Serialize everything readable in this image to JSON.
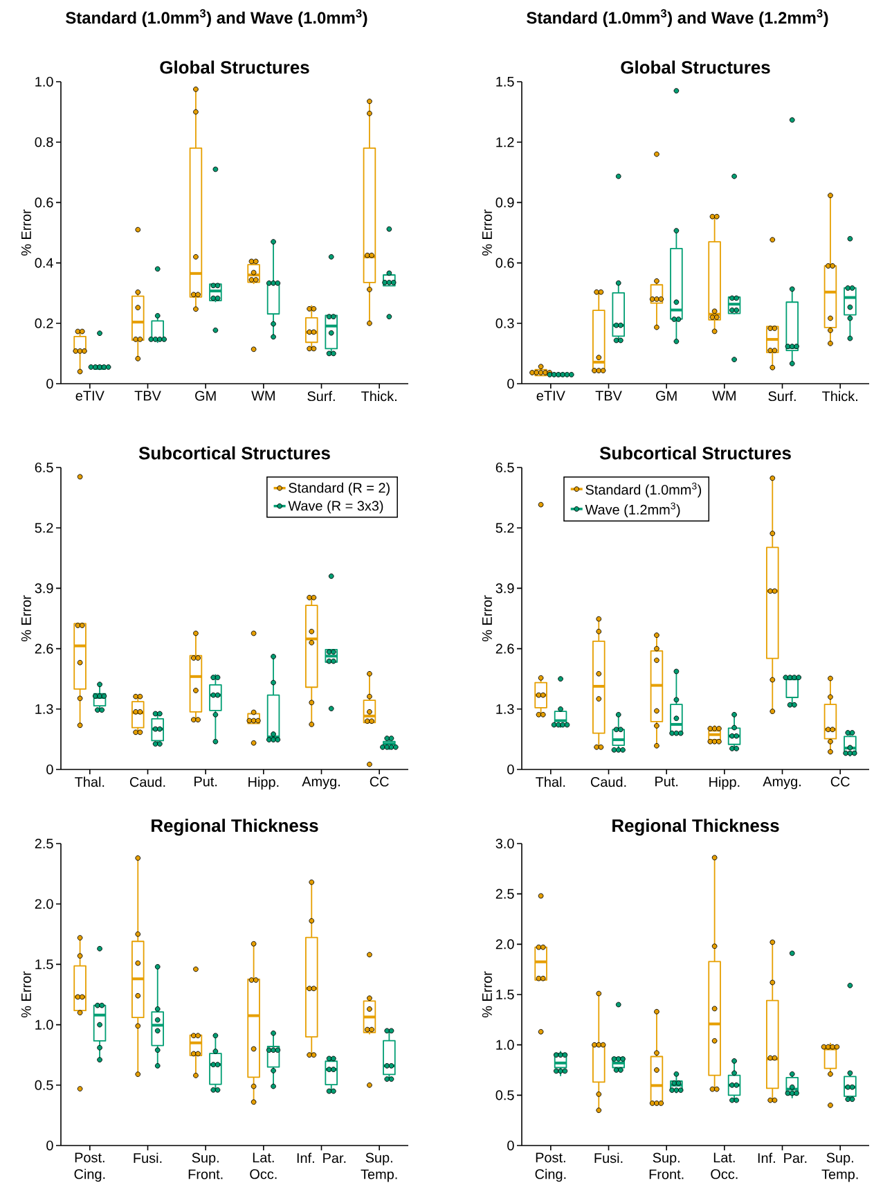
{
  "chart_data": [
    {
      "type": "box",
      "title": "Standard (1.0mm$^{3}$) and Wave (1.0mm$^{3}$)",
      "subtitle": "Global Structures",
      "ylabel": "% Error",
      "categories": [
        "eTIV",
        "TBV",
        "GM",
        "WM",
        "Surf.",
        "Thick."
      ],
      "ylim": [
        0,
        1
      ],
      "yticks": [
        0,
        0.2,
        0.4,
        0.6,
        0.8,
        {
          "value": 1,
          "label": "1.0"
        }
      ],
      "series": [
        {
          "color": "#e69f00",
          "boxes": [
            {
              "low": 0.04,
              "q1": 0.108,
              "median": 0.108,
              "q3": 0.156,
              "high": 0.173
            },
            {
              "low": 0.083,
              "q1": 0.144,
              "median": 0.204,
              "q3": 0.29,
              "high": 0.303
            },
            {
              "low": 0.247,
              "q1": 0.287,
              "median": 0.365,
              "q3": 0.78,
              "high": 0.975
            },
            {
              "low": 0.33,
              "q1": 0.336,
              "median": 0.36,
              "q3": 0.394,
              "high": 0.405
            },
            {
              "low": 0.116,
              "q1": 0.137,
              "median": 0.17,
              "q3": 0.218,
              "high": 0.26
            },
            {
              "low": 0.2,
              "q1": 0.335,
              "median": 0.42,
              "q3": 0.78,
              "high": 0.935
            }
          ]
        },
        {
          "color": "#009e73",
          "boxes": [
            {
              "low": 0.045,
              "q1": 0.048,
              "median": 0.055,
              "q3": 0.06,
              "high": 0.062
            },
            {
              "low": 0.135,
              "q1": 0.144,
              "median": 0.147,
              "q3": 0.208,
              "high": 0.225
            },
            {
              "low": 0.27,
              "q1": 0.275,
              "median": 0.307,
              "q3": 0.33,
              "high": 0.33
            },
            {
              "low": 0.155,
              "q1": 0.231,
              "median": 0.333,
              "q3": 0.333,
              "high": 0.47
            },
            {
              "low": 0.1,
              "q1": 0.116,
              "median": 0.191,
              "q3": 0.226,
              "high": 0.226
            },
            {
              "low": 0.324,
              "q1": 0.324,
              "median": 0.335,
              "q3": 0.36,
              "high": 0.366
            }
          ]
        },
        {
          "type": "scatter",
          "color": "#e69f00",
          "marker": "circle",
          "x": [
            "eTIV",
            "eTIV",
            "eTIV",
            "eTIV",
            "eTIV",
            "eTIV",
            "TBV",
            "TBV",
            "TBV",
            "TBV",
            "TBV",
            "TBV",
            "GM",
            "GM",
            "GM",
            "GM",
            "GM",
            "GM",
            "WM",
            "WM",
            "WM",
            "WM",
            "WM",
            "WM",
            "Surf.",
            "Surf.",
            "Surf.",
            "Surf.",
            "Surf.",
            "Surf.",
            "Thick.",
            "Thick.",
            "Thick.",
            "Thick.",
            "Thick.",
            "Thick."
          ],
          "values": [
            0.173,
            0.173,
            0.108,
            0.108,
            0.108,
            0.04,
            0.51,
            0.303,
            0.252,
            0.147,
            0.147,
            0.083,
            0.975,
            0.9,
            0.42,
            0.295,
            0.295,
            0.247,
            0.405,
            0.405,
            0.368,
            0.344,
            0.344,
            0.114,
            0.248,
            0.248,
            0.171,
            0.171,
            0.116,
            0.116,
            0.935,
            0.895,
            0.425,
            0.425,
            0.312,
            0.2
          ]
        },
        {
          "type": "scatter",
          "color": "#009e73",
          "marker": "circle",
          "x": [
            "eTIV",
            "eTIV",
            "eTIV",
            "eTIV",
            "eTIV",
            "eTIV",
            "TBV",
            "TBV",
            "TBV",
            "TBV",
            "TBV",
            "TBV",
            "GM",
            "GM",
            "GM",
            "GM",
            "GM",
            "GM",
            "WM",
            "WM",
            "WM",
            "WM",
            "WM",
            "WM",
            "Surf.",
            "Surf.",
            "Surf.",
            "Surf.",
            "Surf.",
            "Surf.",
            "Thick.",
            "Thick.",
            "Thick.",
            "Thick.",
            "Thick.",
            "Thick."
          ],
          "values": [
            0.167,
            0.055,
            0.055,
            0.055,
            0.055,
            0.055,
            0.38,
            0.225,
            0.147,
            0.147,
            0.147,
            0.147,
            0.71,
            0.325,
            0.325,
            0.283,
            0.283,
            0.177,
            0.47,
            0.333,
            0.333,
            0.333,
            0.198,
            0.155,
            0.42,
            0.222,
            0.222,
            0.168,
            0.1,
            0.1,
            0.512,
            0.366,
            0.335,
            0.335,
            0.335,
            0.222
          ]
        }
      ]
    },
    {
      "type": "box",
      "title": "Standard (1.0mm$^{3}$) and Wave (1.2mm$^{3}$)",
      "subtitle": "Global Structures",
      "ylabel": "% Error",
      "categories": [
        "eTIV",
        "TBV",
        "GM",
        "WM",
        "Surf.",
        "Thick."
      ],
      "ylim": [
        0,
        1.5
      ],
      "yticks": [
        0,
        0.3,
        0.6,
        0.9,
        1.2,
        1.5
      ],
      "series": [
        {
          "color": "#e69f00",
          "boxes": [
            {
              "low": 0.04,
              "q1": 0.04,
              "median": 0.055,
              "q3": 0.07,
              "high": 0.085
            },
            {
              "low": 0.055,
              "q1": 0.066,
              "median": 0.107,
              "q3": 0.364,
              "high": 0.455
            },
            {
              "low": 0.28,
              "q1": 0.4,
              "median": 0.42,
              "q3": 0.491,
              "high": 0.51
            },
            {
              "low": 0.26,
              "q1": 0.317,
              "median": 0.345,
              "q3": 0.705,
              "high": 0.83
            },
            {
              "low": 0.08,
              "q1": 0.155,
              "median": 0.22,
              "q3": 0.284,
              "high": 0.284
            },
            {
              "low": 0.2,
              "q1": 0.279,
              "median": 0.455,
              "q3": 0.585,
              "high": 0.935
            }
          ]
        },
        {
          "color": "#009e73",
          "boxes": [
            {
              "low": 0.035,
              "q1": 0.04,
              "median": 0.045,
              "q3": 0.05,
              "high": 0.05
            },
            {
              "low": 0.215,
              "q1": 0.236,
              "median": 0.29,
              "q3": 0.451,
              "high": 0.5
            },
            {
              "low": 0.21,
              "q1": 0.321,
              "median": 0.366,
              "q3": 0.671,
              "high": 0.76
            },
            {
              "low": 0.345,
              "q1": 0.349,
              "median": 0.395,
              "q3": 0.43,
              "high": 0.43
            },
            {
              "low": 0.1,
              "q1": 0.165,
              "median": 0.18,
              "q3": 0.405,
              "high": 0.47
            },
            {
              "low": 0.225,
              "q1": 0.342,
              "median": 0.428,
              "q3": 0.476,
              "high": 0.476
            }
          ]
        },
        {
          "type": "scatter",
          "color": "#e69f00",
          "marker": "circle",
          "x": [
            "eTIV",
            "eTIV",
            "eTIV",
            "eTIV",
            "eTIV",
            "eTIV",
            "TBV",
            "TBV",
            "TBV",
            "TBV",
            "TBV",
            "TBV",
            "GM",
            "GM",
            "GM",
            "GM",
            "GM",
            "GM",
            "WM",
            "WM",
            "WM",
            "WM",
            "WM",
            "WM",
            "Surf.",
            "Surf.",
            "Surf.",
            "Surf.",
            "Surf.",
            "Surf.",
            "Thick.",
            "Thick.",
            "Thick.",
            "Thick.",
            "Thick.",
            "Thick."
          ],
          "values": [
            0.085,
            0.055,
            0.055,
            0.055,
            0.055,
            0.055,
            0.455,
            0.455,
            0.13,
            0.065,
            0.065,
            0.065,
            1.14,
            0.51,
            0.42,
            0.42,
            0.42,
            0.28,
            0.83,
            0.83,
            0.36,
            0.33,
            0.33,
            0.26,
            0.715,
            0.275,
            0.275,
            0.165,
            0.165,
            0.08,
            0.935,
            0.585,
            0.585,
            0.325,
            0.265,
            0.2
          ]
        },
        {
          "type": "scatter",
          "color": "#009e73",
          "marker": "circle",
          "x": [
            "eTIV",
            "eTIV",
            "eTIV",
            "eTIV",
            "eTIV",
            "eTIV",
            "TBV",
            "TBV",
            "TBV",
            "TBV",
            "TBV",
            "TBV",
            "GM",
            "GM",
            "GM",
            "GM",
            "GM",
            "GM",
            "WM",
            "WM",
            "WM",
            "WM",
            "WM",
            "WM",
            "Surf.",
            "Surf.",
            "Surf.",
            "Surf.",
            "Surf.",
            "Surf.",
            "Thick.",
            "Thick.",
            "Thick.",
            "Thick.",
            "Thick.",
            "Thick."
          ],
          "values": [
            0.045,
            0.045,
            0.045,
            0.045,
            0.045,
            0.045,
            1.03,
            0.5,
            0.29,
            0.29,
            0.215,
            0.215,
            1.455,
            0.76,
            0.405,
            0.32,
            0.32,
            0.21,
            1.03,
            0.425,
            0.425,
            0.365,
            0.365,
            0.12,
            1.31,
            0.47,
            0.185,
            0.185,
            0.185,
            0.1,
            0.72,
            0.475,
            0.475,
            0.38,
            0.325,
            0.225
          ]
        }
      ]
    },
    {
      "type": "box",
      "title": "Subcortical Structures",
      "ylabel": "% Error",
      "categories": [
        "Thal.",
        "Caud.",
        "Put.",
        "Hipp.",
        "Amyg.",
        "CC"
      ],
      "ylim": [
        0,
        6.5
      ],
      "yticks": [
        0,
        1.3,
        2.6,
        3.9,
        5.2,
        6.5
      ],
      "legend": "top right",
      "series": [
        {
          "name": "Standard (R = 2)",
          "color": "#e69f00",
          "boxes": [
            {
              "low": 0.95,
              "q1": 1.73,
              "median": 2.66,
              "q3": 3.14,
              "high": 3.14
            },
            {
              "low": 0.8,
              "q1": 0.9,
              "median": 1.22,
              "q3": 1.46,
              "high": 1.57
            },
            {
              "low": 1.07,
              "q1": 1.24,
              "median": 2.0,
              "q3": 2.45,
              "high": 2.93
            },
            {
              "low": 0.99,
              "q1": 0.99,
              "median": 1.05,
              "q3": 1.2,
              "high": 1.23
            },
            {
              "low": 0.97,
              "q1": 1.77,
              "median": 2.81,
              "q3": 3.53,
              "high": 3.7
            },
            {
              "low": 1.0,
              "q1": 1.01,
              "median": 1.15,
              "q3": 1.49,
              "high": 2.06
            }
          ]
        },
        {
          "name": "Wave (R = 3x3)",
          "color": "#009e73",
          "boxes": [
            {
              "low": 1.28,
              "q1": 1.37,
              "median": 1.55,
              "q3": 1.63,
              "high": 1.83
            },
            {
              "low": 0.55,
              "q1": 0.62,
              "median": 0.87,
              "q3": 1.09,
              "high": 1.2
            },
            {
              "low": 0.6,
              "q1": 1.27,
              "median": 1.6,
              "q3": 1.82,
              "high": 2.05
            },
            {
              "low": 0.62,
              "q1": 0.66,
              "median": 0.7,
              "q3": 1.6,
              "high": 2.43
            },
            {
              "low": 2.31,
              "q1": 2.31,
              "median": 2.44,
              "q3": 2.58,
              "high": 2.58
            },
            {
              "low": 0.42,
              "q1": 0.48,
              "median": 0.55,
              "q3": 0.6,
              "high": 0.67
            }
          ]
        },
        {
          "type": "scatter",
          "color": "#e69f00",
          "marker": "circle",
          "x": [
            "Thal.",
            "Thal.",
            "Thal.",
            "Thal.",
            "Thal.",
            "Thal.",
            "Caud.",
            "Caud.",
            "Caud.",
            "Caud.",
            "Caud.",
            "Caud.",
            "Put.",
            "Put.",
            "Put.",
            "Put.",
            "Put.",
            "Put.",
            "Hipp.",
            "Hipp.",
            "Hipp.",
            "Hipp.",
            "Hipp.",
            "Hipp.",
            "Amyg.",
            "Amyg.",
            "Amyg.",
            "Amyg.",
            "Amyg.",
            "Amyg.",
            "CC",
            "CC",
            "CC",
            "CC",
            "CC",
            "CC"
          ],
          "values": [
            6.3,
            3.1,
            3.1,
            2.3,
            1.53,
            0.95,
            1.57,
            1.57,
            1.24,
            1.24,
            0.8,
            0.8,
            2.93,
            2.4,
            2.4,
            1.7,
            1.07,
            1.07,
            2.93,
            1.23,
            1.05,
            1.05,
            1.05,
            0.57,
            3.7,
            3.7,
            2.97,
            2.73,
            1.44,
            0.97,
            2.06,
            1.57,
            1.24,
            1.04,
            1.04,
            0.11
          ]
        },
        {
          "type": "scatter",
          "color": "#009e73",
          "marker": "circle",
          "x": [
            "Thal.",
            "Thal.",
            "Thal.",
            "Thal.",
            "Thal.",
            "Thal.",
            "Caud.",
            "Caud.",
            "Caud.",
            "Caud.",
            "Caud.",
            "Caud.",
            "Put.",
            "Put.",
            "Put.",
            "Put.",
            "Put.",
            "Put.",
            "Hipp.",
            "Hipp.",
            "Hipp.",
            "Hipp.",
            "Hipp.",
            "Hipp.",
            "Amyg.",
            "Amyg.",
            "Amyg.",
            "Amyg.",
            "Amyg.",
            "Amyg.",
            "CC",
            "CC",
            "CC",
            "CC",
            "CC",
            "CC"
          ],
          "values": [
            1.83,
            1.58,
            1.58,
            1.58,
            1.28,
            1.28,
            1.2,
            1.2,
            0.87,
            0.87,
            0.55,
            0.55,
            1.98,
            1.98,
            1.6,
            1.6,
            1.18,
            0.6,
            2.43,
            1.87,
            0.76,
            0.64,
            0.64,
            0.64,
            4.16,
            2.53,
            2.53,
            2.33,
            2.33,
            1.31,
            0.67,
            0.67,
            0.48,
            0.48,
            0.48,
            0.48
          ]
        }
      ]
    },
    {
      "type": "box",
      "title": "Subcortical Structures",
      "ylabel": "% Error",
      "categories": [
        "Thal.",
        "Caud.",
        "Put.",
        "Hipp.",
        "Amyg.",
        "CC"
      ],
      "ylim": [
        0,
        6.5
      ],
      "yticks": [
        0,
        1.3,
        2.6,
        3.9,
        5.2,
        6.5
      ],
      "legend": "top left",
      "series": [
        {
          "name": "Standard (1.0mm$^{3}$)",
          "color": "#e69f00",
          "boxes": [
            {
              "low": 1.18,
              "q1": 1.33,
              "median": 1.6,
              "q3": 1.87,
              "high": 1.97
            },
            {
              "low": 0.48,
              "q1": 0.78,
              "median": 1.79,
              "q3": 2.76,
              "high": 3.24
            },
            {
              "low": 0.51,
              "q1": 1.03,
              "median": 1.81,
              "q3": 2.55,
              "high": 2.89
            },
            {
              "low": 0.58,
              "q1": 0.64,
              "median": 0.75,
              "q3": 0.83,
              "high": 0.95
            },
            {
              "low": 1.25,
              "q1": 2.39,
              "median": 3.84,
              "q3": 4.78,
              "high": 6.27
            },
            {
              "low": 0.38,
              "q1": 0.66,
              "median": 0.86,
              "q3": 1.4,
              "high": 1.96
            }
          ]
        },
        {
          "name": "Wave (1.2mm$^{3}$)",
          "color": "#009e73",
          "boxes": [
            {
              "low": 0.9,
              "q1": 0.96,
              "median": 1.05,
              "q3": 1.25,
              "high": 1.3
            },
            {
              "low": 0.42,
              "q1": 0.52,
              "median": 0.64,
              "q3": 0.86,
              "high": 1.18
            },
            {
              "low": 0.78,
              "q1": 0.78,
              "median": 0.97,
              "q3": 1.4,
              "high": 2.11
            },
            {
              "low": 0.45,
              "q1": 0.54,
              "median": 0.72,
              "q3": 0.89,
              "high": 1.18
            },
            {
              "low": 1.39,
              "q1": 1.55,
              "median": 1.95,
              "q3": 1.98,
              "high": 2.02
            },
            {
              "low": 0.28,
              "q1": 0.33,
              "median": 0.46,
              "q3": 0.71,
              "high": 0.79
            }
          ]
        },
        {
          "type": "scatter",
          "color": "#e69f00",
          "marker": "circle",
          "x": [
            "Thal.",
            "Thal.",
            "Thal.",
            "Thal.",
            "Thal.",
            "Thal.",
            "Caud.",
            "Caud.",
            "Caud.",
            "Caud.",
            "Caud.",
            "Caud.",
            "Put.",
            "Put.",
            "Put.",
            "Put.",
            "Put.",
            "Put.",
            "Hipp.",
            "Hipp.",
            "Hipp.",
            "Hipp.",
            "Hipp.",
            "Hipp.",
            "Amyg.",
            "Amyg.",
            "Amyg.",
            "Amyg.",
            "Amyg.",
            "Amyg.",
            "CC",
            "CC",
            "CC",
            "CC",
            "CC",
            "CC"
          ],
          "values": [
            5.7,
            1.97,
            1.6,
            1.6,
            1.18,
            1.18,
            3.24,
            2.97,
            2.06,
            1.52,
            0.48,
            0.48,
            2.89,
            2.6,
            2.35,
            1.26,
            0.94,
            0.51,
            0.88,
            0.88,
            0.88,
            0.6,
            0.6,
            0.6,
            6.27,
            5.08,
            3.84,
            3.84,
            1.93,
            1.25,
            1.96,
            1.56,
            0.86,
            0.86,
            0.6,
            0.38
          ]
        },
        {
          "type": "scatter",
          "color": "#009e73",
          "marker": "circle",
          "x": [
            "Thal.",
            "Thal.",
            "Thal.",
            "Thal.",
            "Thal.",
            "Thal.",
            "Caud.",
            "Caud.",
            "Caud.",
            "Caud.",
            "Caud.",
            "Caud.",
            "Put.",
            "Put.",
            "Put.",
            "Put.",
            "Put.",
            "Put.",
            "Hipp.",
            "Hipp.",
            "Hipp.",
            "Hipp.",
            "Hipp.",
            "Hipp.",
            "Amyg.",
            "Amyg.",
            "Amyg.",
            "Amyg.",
            "Amyg.",
            "Amyg.",
            "CC",
            "CC",
            "CC",
            "CC",
            "CC",
            "CC"
          ],
          "values": [
            1.95,
            1.3,
            0.96,
            0.96,
            0.96,
            0.96,
            1.18,
            0.86,
            0.86,
            0.42,
            0.42,
            0.42,
            2.11,
            1.5,
            1.1,
            0.78,
            0.78,
            0.78,
            1.18,
            0.9,
            0.72,
            0.72,
            0.45,
            0.45,
            1.98,
            1.98,
            1.98,
            1.98,
            1.39,
            1.39,
            0.79,
            0.79,
            0.47,
            0.35,
            0.35,
            0.35
          ]
        }
      ]
    },
    {
      "type": "box",
      "title": "Regional Thickness",
      "ylabel": "% Error",
      "categories": [
        "Post. Cing.",
        "Fusi.",
        "Sup. Front.",
        "Lat. Occ.",
        "Inf. Par.",
        "Sup. Temp."
      ],
      "ylim": [
        0,
        2.5
      ],
      "yticks": [
        0,
        0.5,
        {
          "value": 1,
          "label": "1.0"
        },
        1.5,
        {
          "value": 2,
          "label": "2.0"
        },
        2.5
      ],
      "series": [
        {
          "color": "#e69f00",
          "boxes": [
            {
              "low": 1.1,
              "q1": 1.117,
              "median": 1.23,
              "q3": 1.487,
              "high": 1.72
            },
            {
              "low": 0.59,
              "q1": 1.06,
              "median": 1.38,
              "q3": 1.69,
              "high": 2.38
            },
            {
              "low": 0.58,
              "q1": 0.745,
              "median": 0.85,
              "q3": 0.914,
              "high": 0.92
            },
            {
              "low": 0.36,
              "q1": 0.566,
              "median": 1.075,
              "q3": 1.377,
              "high": 1.67
            },
            {
              "low": 0.75,
              "q1": 0.9,
              "median": 1.3,
              "q3": 1.722,
              "high": 2.18
            },
            {
              "low": 0.92,
              "q1": 0.936,
              "median": 1.064,
              "q3": 1.196,
              "high": 1.2
            }
          ]
        },
        {
          "color": "#009e73",
          "boxes": [
            {
              "low": 0.71,
              "q1": 0.866,
              "median": 1.08,
              "q3": 1.16,
              "high": 1.16
            },
            {
              "low": 0.66,
              "q1": 0.828,
              "median": 0.996,
              "q3": 1.106,
              "high": 1.48
            },
            {
              "low": 0.46,
              "q1": 0.507,
              "median": 0.67,
              "q3": 0.762,
              "high": 0.91
            },
            {
              "low": 0.49,
              "q1": 0.65,
              "median": 0.79,
              "q3": 0.82,
              "high": 0.93
            },
            {
              "low": 0.45,
              "q1": 0.504,
              "median": 0.63,
              "q3": 0.698,
              "high": 0.72
            },
            {
              "low": 0.55,
              "q1": 0.588,
              "median": 0.66,
              "q3": 0.868,
              "high": 0.95
            }
          ]
        },
        {
          "type": "scatter",
          "color": "#e69f00",
          "marker": "circle",
          "x": [
            "Post. Cing.",
            "Post. Cing.",
            "Post. Cing.",
            "Post. Cing.",
            "Post. Cing.",
            "Post. Cing.",
            "Fusi.",
            "Fusi.",
            "Fusi.",
            "Fusi.",
            "Fusi.",
            "Fusi.",
            "Sup. Front.",
            "Sup. Front.",
            "Sup. Front.",
            "Sup. Front.",
            "Sup. Front.",
            "Sup. Front.",
            "Lat. Occ.",
            "Lat. Occ.",
            "Lat. Occ.",
            "Lat. Occ.",
            "Lat. Occ.",
            "Lat. Occ.",
            "Inf. Par.",
            "Inf. Par.",
            "Inf. Par.",
            "Inf. Par.",
            "Inf. Par.",
            "Inf. Par.",
            "Sup. Temp.",
            "Sup. Temp.",
            "Sup. Temp.",
            "Sup. Temp.",
            "Sup. Temp.",
            "Sup. Temp."
          ],
          "values": [
            1.72,
            1.57,
            1.23,
            1.23,
            1.1,
            0.47,
            2.38,
            1.75,
            1.51,
            1.24,
            0.99,
            0.59,
            1.46,
            0.91,
            0.91,
            0.76,
            0.76,
            0.58,
            1.67,
            1.37,
            1.37,
            0.8,
            0.49,
            0.36,
            2.18,
            1.86,
            1.3,
            1.3,
            0.75,
            0.75,
            1.58,
            1.22,
            1.13,
            0.96,
            0.96,
            0.5
          ]
        },
        {
          "type": "scatter",
          "color": "#009e73",
          "marker": "circle",
          "x": [
            "Post. Cing.",
            "Post. Cing.",
            "Post. Cing.",
            "Post. Cing.",
            "Post. Cing.",
            "Post. Cing.",
            "Fusi.",
            "Fusi.",
            "Fusi.",
            "Fusi.",
            "Fusi.",
            "Fusi.",
            "Sup. Front.",
            "Sup. Front.",
            "Sup. Front.",
            "Sup. Front.",
            "Sup. Front.",
            "Sup. Front.",
            "Lat. Occ.",
            "Lat. Occ.",
            "Lat. Occ.",
            "Lat. Occ.",
            "Lat. Occ.",
            "Lat. Occ.",
            "Inf. Par.",
            "Inf. Par.",
            "Inf. Par.",
            "Inf. Par.",
            "Inf. Par.",
            "Inf. Par.",
            "Sup. Temp.",
            "Sup. Temp.",
            "Sup. Temp.",
            "Sup. Temp.",
            "Sup. Temp.",
            "Sup. Temp."
          ],
          "values": [
            1.63,
            1.16,
            1.16,
            1.0,
            0.81,
            0.71,
            1.48,
            1.13,
            1.04,
            0.95,
            0.79,
            0.66,
            0.91,
            0.78,
            0.67,
            0.67,
            0.46,
            0.46,
            0.93,
            0.79,
            0.79,
            0.79,
            0.62,
            0.49,
            0.72,
            0.72,
            0.63,
            0.63,
            0.45,
            0.45,
            0.95,
            0.95,
            0.66,
            0.66,
            0.55,
            0.55
          ]
        }
      ]
    },
    {
      "type": "box",
      "title": "Regional Thickness",
      "ylabel": "% Error",
      "categories": [
        "Post. Cing.",
        "Fusi.",
        "Sup. Front.",
        "Lat. Occ.",
        "Inf. Par.",
        "Sup. Temp."
      ],
      "ylim": [
        0,
        3
      ],
      "yticks": [
        0,
        0.5,
        {
          "value": 1,
          "label": "1.0"
        },
        1.5,
        {
          "value": 2,
          "label": "2.0"
        },
        2.5,
        {
          "value": 3,
          "label": "3.0"
        }
      ],
      "series": [
        {
          "color": "#e69f00",
          "boxes": [
            {
              "low": 1.64,
              "q1": 1.644,
              "median": 1.825,
              "q3": 1.97,
              "high": 1.97
            },
            {
              "low": 0.35,
              "q1": 0.63,
              "median": 1.0,
              "q3": 1.0,
              "high": 1.51
            },
            {
              "low": 0.42,
              "q1": 0.425,
              "median": 0.596,
              "q3": 0.884,
              "high": 1.33
            },
            {
              "low": 0.56,
              "q1": 0.697,
              "median": 1.208,
              "q3": 1.828,
              "high": 2.86
            },
            {
              "low": 0.45,
              "q1": 0.568,
              "median": 0.86,
              "q3": 1.441,
              "high": 2.02
            },
            {
              "low": 0.71,
              "q1": 0.766,
              "median": 0.96,
              "q3": 0.983,
              "high": 1.02
            }
          ]
        },
        {
          "color": "#009e73",
          "boxes": [
            {
              "low": 0.69,
              "q1": 0.774,
              "median": 0.82,
              "q3": 0.914,
              "high": 0.94
            },
            {
              "low": 0.75,
              "q1": 0.774,
              "median": 0.82,
              "q3": 0.875,
              "high": 0.875
            },
            {
              "low": 0.52,
              "q1": 0.544,
              "median": 0.6,
              "q3": 0.64,
              "high": 0.71
            },
            {
              "low": 0.45,
              "q1": 0.5,
              "median": 0.6,
              "q3": 0.697,
              "high": 0.84
            },
            {
              "low": 0.47,
              "q1": 0.505,
              "median": 0.56,
              "q3": 0.675,
              "high": 0.71
            },
            {
              "low": 0.46,
              "q1": 0.489,
              "median": 0.58,
              "q3": 0.686,
              "high": 0.72
            }
          ]
        },
        {
          "type": "scatter",
          "color": "#e69f00",
          "marker": "circle",
          "x": [
            "Post. Cing.",
            "Post. Cing.",
            "Post. Cing.",
            "Post. Cing.",
            "Post. Cing.",
            "Post. Cing.",
            "Fusi.",
            "Fusi.",
            "Fusi.",
            "Fusi.",
            "Fusi.",
            "Fusi.",
            "Sup. Front.",
            "Sup. Front.",
            "Sup. Front.",
            "Sup. Front.",
            "Sup. Front.",
            "Sup. Front.",
            "Lat. Occ.",
            "Lat. Occ.",
            "Lat. Occ.",
            "Lat. Occ.",
            "Lat. Occ.",
            "Lat. Occ.",
            "Inf. Par.",
            "Inf. Par.",
            "Inf. Par.",
            "Inf. Par.",
            "Inf. Par.",
            "Inf. Par.",
            "Sup. Temp.",
            "Sup. Temp.",
            "Sup. Temp.",
            "Sup. Temp.",
            "Sup. Temp.",
            "Sup. Temp."
          ],
          "values": [
            2.48,
            1.97,
            1.97,
            1.66,
            1.66,
            1.13,
            1.51,
            1.0,
            1.0,
            1.0,
            0.51,
            0.35,
            1.33,
            0.92,
            0.75,
            0.42,
            0.42,
            0.42,
            2.86,
            1.98,
            1.36,
            1.04,
            0.56,
            0.56,
            2.02,
            1.62,
            0.87,
            0.87,
            0.45,
            0.45,
            0.98,
            0.98,
            0.98,
            0.98,
            0.71,
            0.4
          ]
        },
        {
          "type": "scatter",
          "color": "#009e73",
          "marker": "circle",
          "x": [
            "Post. Cing.",
            "Post. Cing.",
            "Post. Cing.",
            "Post. Cing.",
            "Post. Cing.",
            "Post. Cing.",
            "Fusi.",
            "Fusi.",
            "Fusi.",
            "Fusi.",
            "Fusi.",
            "Fusi.",
            "Sup. Front.",
            "Sup. Front.",
            "Sup. Front.",
            "Sup. Front.",
            "Sup. Front.",
            "Sup. Front.",
            "Lat. Occ.",
            "Lat. Occ.",
            "Lat. Occ.",
            "Lat. Occ.",
            "Lat. Occ.",
            "Lat. Occ.",
            "Inf. Par.",
            "Inf. Par.",
            "Inf. Par.",
            "Inf. Par.",
            "Inf. Par.",
            "Inf. Par.",
            "Sup. Temp.",
            "Sup. Temp.",
            "Sup. Temp.",
            "Sup. Temp.",
            "Sup. Temp.",
            "Sup. Temp."
          ],
          "values": [
            0.9,
            0.9,
            0.9,
            0.74,
            0.74,
            0.74,
            1.4,
            0.86,
            0.86,
            0.86,
            0.75,
            0.75,
            0.71,
            0.62,
            0.62,
            0.55,
            0.55,
            0.55,
            0.84,
            0.72,
            0.6,
            0.6,
            0.45,
            0.45,
            1.91,
            0.71,
            0.58,
            0.52,
            0.52,
            0.52,
            1.59,
            0.72,
            0.58,
            0.58,
            0.46,
            0.46
          ]
        }
      ]
    }
  ]
}
